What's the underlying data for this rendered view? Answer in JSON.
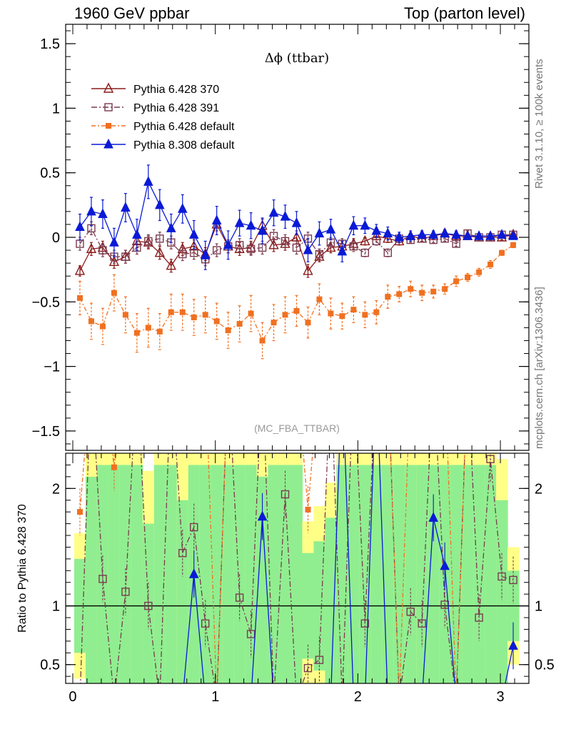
{
  "header": {
    "left": "1960 GeV ppbar",
    "right": "Top (parton level)"
  },
  "side_labels": {
    "rivet": "Rivet 3.1.10, ≥ 100k events",
    "mcplots": "mcplots.cern.ch [arXiv:1306.3436]"
  },
  "chart_data": [
    {
      "type": "line",
      "title": "Δϕ (ttbar)",
      "analysis": "(MC_FBA_TTBAR)",
      "xlim": [
        -0.05,
        3.2
      ],
      "ylim": [
        -1.65,
        1.65
      ],
      "x_ticks": [
        "0",
        "1",
        "2",
        "3"
      ],
      "y_ticks": [
        "1.5",
        "1",
        "0.5",
        "0",
        "−0.5",
        "−1",
        "−1.5"
      ],
      "legend_position": "top-left",
      "x": [
        0.05,
        0.13,
        0.21,
        0.29,
        0.37,
        0.45,
        0.53,
        0.61,
        0.69,
        0.77,
        0.85,
        0.93,
        1.01,
        1.09,
        1.17,
        1.25,
        1.33,
        1.41,
        1.49,
        1.57,
        1.65,
        1.73,
        1.81,
        1.89,
        1.97,
        2.05,
        2.13,
        2.21,
        2.29,
        2.37,
        2.45,
        2.53,
        2.61,
        2.69,
        2.77,
        2.85,
        2.93,
        3.01,
        3.09
      ],
      "series": [
        {
          "name": "Pythia 6.428 370",
          "color": "#8b1a1a",
          "marker": "open-triangle",
          "dash": "",
          "values": [
            -0.26,
            -0.09,
            -0.08,
            -0.19,
            -0.15,
            -0.03,
            -0.04,
            -0.12,
            -0.22,
            -0.09,
            -0.07,
            -0.13,
            0.1,
            -0.07,
            -0.09,
            -0.08,
            0.09,
            -0.06,
            -0.05,
            0.0,
            -0.26,
            -0.15,
            -0.08,
            -0.07,
            -0.05,
            -0.03,
            0.01,
            -0.01,
            -0.03,
            0.01,
            -0.01,
            0.01,
            0.03,
            0.01,
            0.01,
            0.0,
            0.0,
            0.0,
            0.02
          ],
          "errors": [
            0.04,
            0.05,
            0.05,
            0.05,
            0.05,
            0.05,
            0.05,
            0.05,
            0.05,
            0.05,
            0.05,
            0.05,
            0.05,
            0.05,
            0.05,
            0.05,
            0.05,
            0.05,
            0.05,
            0.05,
            0.05,
            0.04,
            0.04,
            0.04,
            0.04,
            0.03,
            0.03,
            0.03,
            0.03,
            0.02,
            0.02,
            0.02,
            0.02,
            0.02,
            0.02,
            0.02,
            0.02,
            0.02,
            0.02
          ]
        },
        {
          "name": "Pythia 6.428 391",
          "color": "#7a3b50",
          "marker": "open-square",
          "dash": "8,3,2,3",
          "values": [
            -0.05,
            0.07,
            -0.1,
            -0.15,
            -0.15,
            -0.08,
            -0.03,
            -0.01,
            -0.04,
            -0.13,
            -0.12,
            -0.17,
            -0.1,
            -0.07,
            -0.06,
            -0.09,
            -0.08,
            0.01,
            -0.03,
            -0.08,
            -0.01,
            -0.13,
            -0.04,
            -0.05,
            -0.07,
            -0.12,
            -0.03,
            -0.12,
            -0.01,
            -0.02,
            -0.01,
            -0.02,
            -0.01,
            -0.05,
            0.03,
            0.0,
            0.0,
            0.02,
            0.02
          ],
          "errors": [
            0.05,
            0.05,
            0.05,
            0.05,
            0.05,
            0.05,
            0.05,
            0.05,
            0.05,
            0.05,
            0.05,
            0.05,
            0.05,
            0.05,
            0.05,
            0.05,
            0.05,
            0.05,
            0.05,
            0.05,
            0.05,
            0.04,
            0.04,
            0.04,
            0.04,
            0.03,
            0.03,
            0.03,
            0.03,
            0.02,
            0.02,
            0.02,
            0.02,
            0.02,
            0.02,
            0.02,
            0.02,
            0.02,
            0.02
          ]
        },
        {
          "name": "Pythia 6.428 default",
          "color": "#f07020",
          "marker": "filled-square",
          "dash": "6,3,2,3",
          "values": [
            -0.47,
            -0.65,
            -0.69,
            -0.43,
            -0.6,
            -0.74,
            -0.7,
            -0.73,
            -0.58,
            -0.58,
            -0.62,
            -0.6,
            -0.65,
            -0.72,
            -0.67,
            -0.59,
            -0.8,
            -0.66,
            -0.6,
            -0.57,
            -0.66,
            -0.48,
            -0.59,
            -0.61,
            -0.56,
            -0.6,
            -0.58,
            -0.46,
            -0.44,
            -0.4,
            -0.43,
            -0.42,
            -0.4,
            -0.34,
            -0.31,
            -0.27,
            -0.21,
            -0.12,
            -0.06
          ],
          "errors": [
            0.13,
            0.14,
            0.14,
            0.14,
            0.14,
            0.15,
            0.15,
            0.14,
            0.14,
            0.14,
            0.14,
            0.14,
            0.14,
            0.14,
            0.14,
            0.14,
            0.14,
            0.14,
            0.14,
            0.12,
            0.12,
            0.12,
            0.12,
            0.1,
            0.1,
            0.1,
            0.09,
            0.09,
            0.06,
            0.06,
            0.06,
            0.05,
            0.04,
            0.04,
            0.03,
            0.03,
            0.03,
            0.02,
            0.02
          ]
        },
        {
          "name": "Pythia 8.308 default",
          "color": "#0a1ad6",
          "marker": "filled-triangle",
          "dash": "",
          "values": [
            0.08,
            0.2,
            0.18,
            -0.04,
            0.23,
            0.02,
            0.43,
            0.25,
            0.07,
            0.22,
            0.02,
            -0.14,
            0.13,
            -0.06,
            0.11,
            0.09,
            0.05,
            0.19,
            0.16,
            0.11,
            -0.1,
            0.03,
            0.06,
            -0.11,
            0.09,
            0.09,
            0.05,
            0.03,
            0.0,
            0.01,
            0.02,
            0.02,
            0.03,
            0.02,
            0.01,
            0.01,
            0.01,
            0.02,
            0.01
          ],
          "errors": [
            0.1,
            0.11,
            0.11,
            0.11,
            0.11,
            0.12,
            0.13,
            0.12,
            0.11,
            0.11,
            0.11,
            0.11,
            0.11,
            0.11,
            0.1,
            0.1,
            0.1,
            0.1,
            0.09,
            0.09,
            0.09,
            0.09,
            0.08,
            0.08,
            0.07,
            0.06,
            0.05,
            0.05,
            0.04,
            0.04,
            0.03,
            0.03,
            0.03,
            0.03,
            0.02,
            0.02,
            0.02,
            0.02,
            0.02
          ]
        }
      ]
    },
    {
      "type": "line",
      "ylabel": "Ratio to Pythia 6.428 370",
      "xlim": [
        -0.05,
        3.2
      ],
      "ylim": [
        0.34,
        2.3
      ],
      "x_ticks": [
        "0",
        "1",
        "2",
        "3"
      ],
      "y_ticks": [
        "2",
        "1",
        "0.5"
      ],
      "reference_line": 1,
      "band_colors": {
        "inner": "#90ee90",
        "outer": "#ffff88"
      },
      "band_inner_half_width": [
        0.4,
        1.1,
        1.2,
        1.2,
        1.2,
        1.2,
        0.7,
        1.2,
        1.2,
        0.9,
        1.2,
        1.2,
        1.2,
        1.2,
        1.2,
        1.2,
        1.1,
        1.2,
        1.2,
        1.2,
        0.45,
        0.55,
        0.75,
        1.2,
        1.2,
        1.2,
        1.2,
        1.2,
        1.2,
        1.2,
        1.2,
        1.2,
        1.2,
        1.2,
        1.2,
        1.2,
        1.2,
        0.9,
        0.3
      ],
      "band_outer_half_width": [
        0.62,
        1.5,
        1.6,
        1.6,
        1.6,
        1.6,
        1.15,
        1.6,
        1.6,
        1.3,
        1.6,
        1.6,
        1.6,
        1.6,
        1.6,
        1.6,
        1.6,
        1.6,
        1.6,
        1.6,
        0.72,
        0.85,
        1.05,
        1.6,
        1.6,
        1.6,
        1.6,
        1.6,
        1.6,
        1.6,
        1.6,
        1.6,
        1.6,
        1.6,
        1.6,
        1.6,
        1.6,
        1.25,
        0.5
      ],
      "ratio_series": [
        {
          "name": "Pythia 6.428 391",
          "values": [
            0.2,
            3.0,
            1.23,
            0.2,
            1.12,
            3.0,
            1.0,
            0.2,
            3.0,
            1.45,
            1.67,
            0.85,
            0.2,
            3.0,
            1.07,
            0.76,
            3.0,
            0.2,
            1.95,
            0.2,
            0.47,
            0.54,
            3.0,
            0.2,
            3.0,
            0.85,
            3.0,
            3.0,
            0.2,
            0.95,
            0.85,
            3.0,
            1.01,
            0.2,
            3.0,
            0.9,
            2.25,
            1.25,
            1.22
          ]
        },
        {
          "name": "Pythia 6.428 default",
          "values": [
            1.8,
            3.0,
            3.0,
            2.18,
            3.0,
            3.0,
            3.0,
            3.0,
            3.0,
            3.0,
            3.0,
            3.0,
            0.2,
            3.0,
            3.0,
            3.0,
            3.0,
            3.0,
            3.0,
            3.0,
            1.82,
            3.0,
            3.0,
            3.0,
            3.0,
            3.0,
            3.0,
            3.0,
            0.2,
            3.0,
            3.0,
            3.0,
            3.0,
            0.2,
            3.0,
            3.0,
            3.0,
            3.0,
            3.0
          ]
        },
        {
          "name": "Pythia 8.308 default",
          "values": [
            0.2,
            0.2,
            0.2,
            0.2,
            0.2,
            0.2,
            0.2,
            0.2,
            0.2,
            0.2,
            1.27,
            0.2,
            0.2,
            0.2,
            0.2,
            0.2,
            1.76,
            0.2,
            0.2,
            0.2,
            0.2,
            0.2,
            0.2,
            3.0,
            0.2,
            0.2,
            3.0,
            0.2,
            0.2,
            0.2,
            0.2,
            1.75,
            1.34,
            0.2,
            0.2,
            0.2,
            0.2,
            0.2,
            0.66
          ]
        }
      ]
    }
  ]
}
